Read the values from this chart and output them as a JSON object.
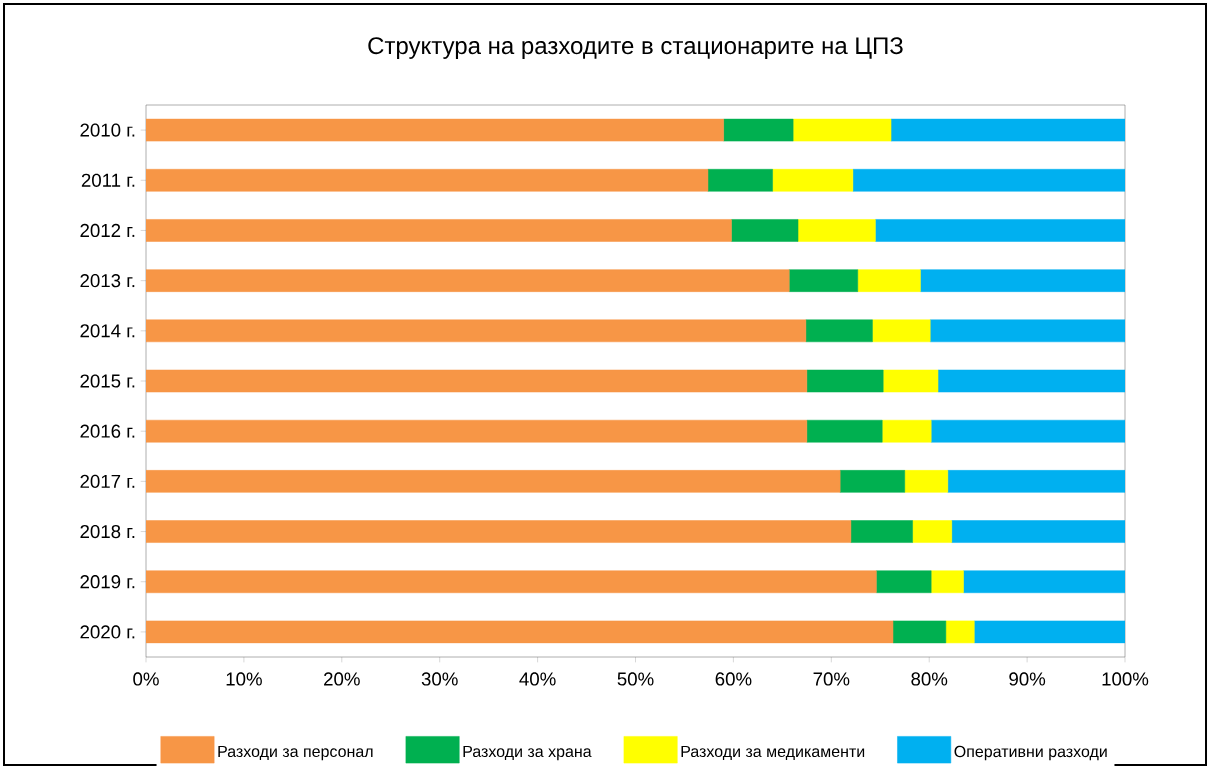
{
  "chart_data": {
    "type": "bar",
    "orientation": "horizontal",
    "stacked": true,
    "title": "Структура на разходите в стационарите на ЦПЗ",
    "categories": [
      "2010 г.",
      "2011 г.",
      "2012 г.",
      "2013 г.",
      "2014 г.",
      "2015 г.",
      "2016 г.",
      "2017 г.",
      "2018 г.",
      "2019 г.",
      "2020 г."
    ],
    "series": [
      {
        "name": "Разходи за персонал",
        "color": "#f79646",
        "values": [
          59.0,
          57.4,
          59.8,
          65.7,
          67.4,
          67.5,
          67.5,
          70.9,
          72.0,
          74.6,
          76.3
        ]
      },
      {
        "name": "Разходи за храна",
        "color": "#00b050",
        "values": [
          7.1,
          6.6,
          6.8,
          7.0,
          6.8,
          7.8,
          7.7,
          6.6,
          6.3,
          5.6,
          5.4
        ]
      },
      {
        "name": "Разходи за медикаменти",
        "color": "#ffff00",
        "values": [
          10.0,
          8.2,
          7.9,
          6.4,
          5.9,
          5.6,
          5.0,
          4.4,
          4.0,
          3.3,
          2.9
        ]
      },
      {
        "name": "Оперативни разходи",
        "color": "#00b0f0",
        "values": [
          23.9,
          27.8,
          25.5,
          20.9,
          19.9,
          19.1,
          19.8,
          18.1,
          17.7,
          16.5,
          15.4
        ]
      }
    ],
    "xlim": [
      0,
      100
    ],
    "xticks": [
      {
        "value": 0,
        "label": "0%"
      },
      {
        "value": 10,
        "label": "10%"
      },
      {
        "value": 20,
        "label": "20%"
      },
      {
        "value": 30,
        "label": "30%"
      },
      {
        "value": 40,
        "label": "40%"
      },
      {
        "value": 50,
        "label": "50%"
      },
      {
        "value": 60,
        "label": "60%"
      },
      {
        "value": 70,
        "label": "70%"
      },
      {
        "value": 80,
        "label": "80%"
      },
      {
        "value": 90,
        "label": "90%"
      },
      {
        "value": 100,
        "label": "100%"
      }
    ],
    "legend": "bottom"
  }
}
